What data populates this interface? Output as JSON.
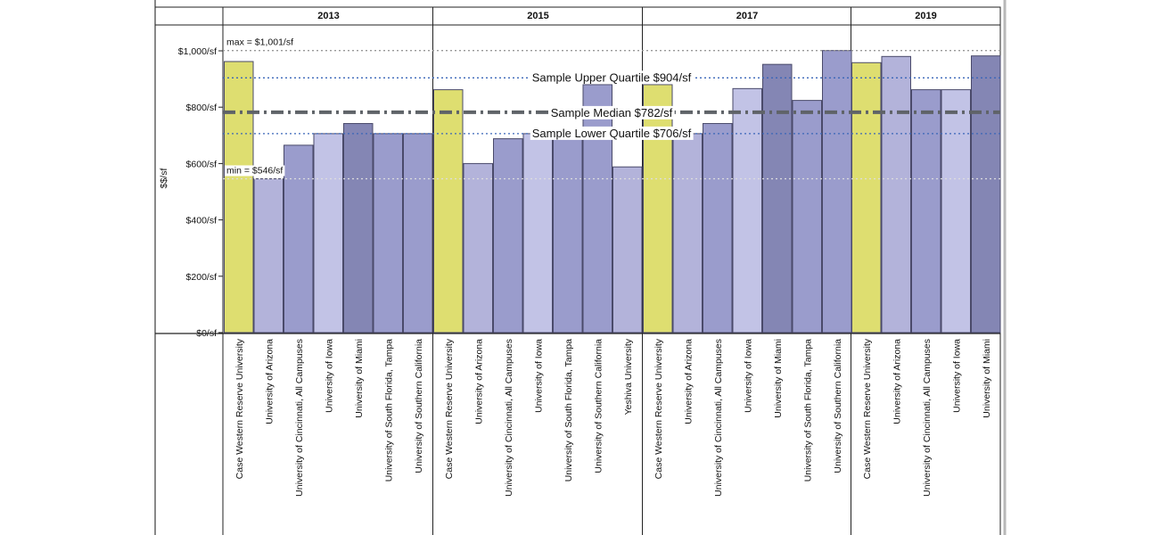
{
  "chart_data": {
    "type": "bar",
    "ylabel": "$$/sf",
    "ylim": [
      0,
      1100
    ],
    "y_ticks": [
      {
        "value": 0,
        "label": "$0/sf"
      },
      {
        "value": 200,
        "label": "$200/sf"
      },
      {
        "value": 400,
        "label": "$400/sf"
      },
      {
        "value": 600,
        "label": "$600/sf"
      },
      {
        "value": 800,
        "label": "$800/sf"
      },
      {
        "value": 1000,
        "label": "$1,000/sf"
      }
    ],
    "panels": [
      {
        "year": "2013",
        "bars": [
          {
            "category": "Case Western Reserve University",
            "value": 962,
            "color": "#dede70"
          },
          {
            "category": "University of Arizona",
            "value": 546,
            "color": "#b3b3da"
          },
          {
            "category": "University of Cincinnati, All Campuses",
            "value": 665,
            "color": "#9a9ccc"
          },
          {
            "category": "University of Iowa",
            "value": 706,
            "color": "#c2c3e6"
          },
          {
            "category": "University of Miami",
            "value": 742,
            "color": "#8486b4"
          },
          {
            "category": "University of South Florida, Tampa",
            "value": 706,
            "color": "#9a9ccc"
          },
          {
            "category": "University of Southern California",
            "value": 706,
            "color": "#9a9ccc"
          }
        ]
      },
      {
        "year": "2015",
        "bars": [
          {
            "category": "Case Western Reserve University",
            "value": 862,
            "color": "#dede70"
          },
          {
            "category": "University of Arizona",
            "value": 600,
            "color": "#b3b3da"
          },
          {
            "category": "University of Cincinnati, All Campuses",
            "value": 688,
            "color": "#9a9ccc"
          },
          {
            "category": "University of Iowa",
            "value": 706,
            "color": "#c2c3e6"
          },
          {
            "category": "University of South Florida, Tampa",
            "value": 706,
            "color": "#9a9ccc"
          },
          {
            "category": "University of Southern California",
            "value": 880,
            "color": "#9a9ccc"
          },
          {
            "category": "Yeshiva University",
            "value": 588,
            "color": "#b3b3da"
          }
        ]
      },
      {
        "year": "2017",
        "bars": [
          {
            "category": "Case Western Reserve University",
            "value": 880,
            "color": "#dede70"
          },
          {
            "category": "University of Arizona",
            "value": 706,
            "color": "#b3b3da"
          },
          {
            "category": "University of Cincinnati, All Campuses",
            "value": 742,
            "color": "#9a9ccc"
          },
          {
            "category": "University of Iowa",
            "value": 866,
            "color": "#c2c3e6"
          },
          {
            "category": "University of Miami",
            "value": 952,
            "color": "#8486b4"
          },
          {
            "category": "University of South Florida, Tampa",
            "value": 824,
            "color": "#9a9ccc"
          },
          {
            "category": "University of Southern California",
            "value": 1001,
            "color": "#9a9ccc"
          }
        ]
      },
      {
        "year": "2019",
        "bars": [
          {
            "category": "Case Western Reserve University",
            "value": 958,
            "color": "#dede70"
          },
          {
            "category": "University of Arizona",
            "value": 980,
            "color": "#b3b3da"
          },
          {
            "category": "University of Cincinnati, All Campuses",
            "value": 862,
            "color": "#9a9ccc"
          },
          {
            "category": "University of Iowa",
            "value": 862,
            "color": "#c2c3e6"
          },
          {
            "category": "University of Miami",
            "value": 982,
            "color": "#8486b4"
          }
        ]
      }
    ],
    "reference_lines": [
      {
        "name": "max",
        "value": 1001,
        "label": "max = $1,001/sf",
        "style": "dotted",
        "color": "#999999"
      },
      {
        "name": "upper-quartile",
        "value": 904,
        "label": "Sample Upper Quartile  $904/sf",
        "style": "dotted",
        "color": "#3a66b8"
      },
      {
        "name": "median",
        "value": 782,
        "label": "Sample Median  $782/sf",
        "style": "dash-dot",
        "color": "#5f6368"
      },
      {
        "name": "lower-quartile",
        "value": 706,
        "label": "Sample Lower Quartile  $706/sf",
        "style": "dotted",
        "color": "#3a66b8"
      },
      {
        "name": "min",
        "value": 546,
        "label": "min = $546/sf",
        "style": "dotted",
        "color": "#dddddd"
      }
    ],
    "grid": false
  }
}
